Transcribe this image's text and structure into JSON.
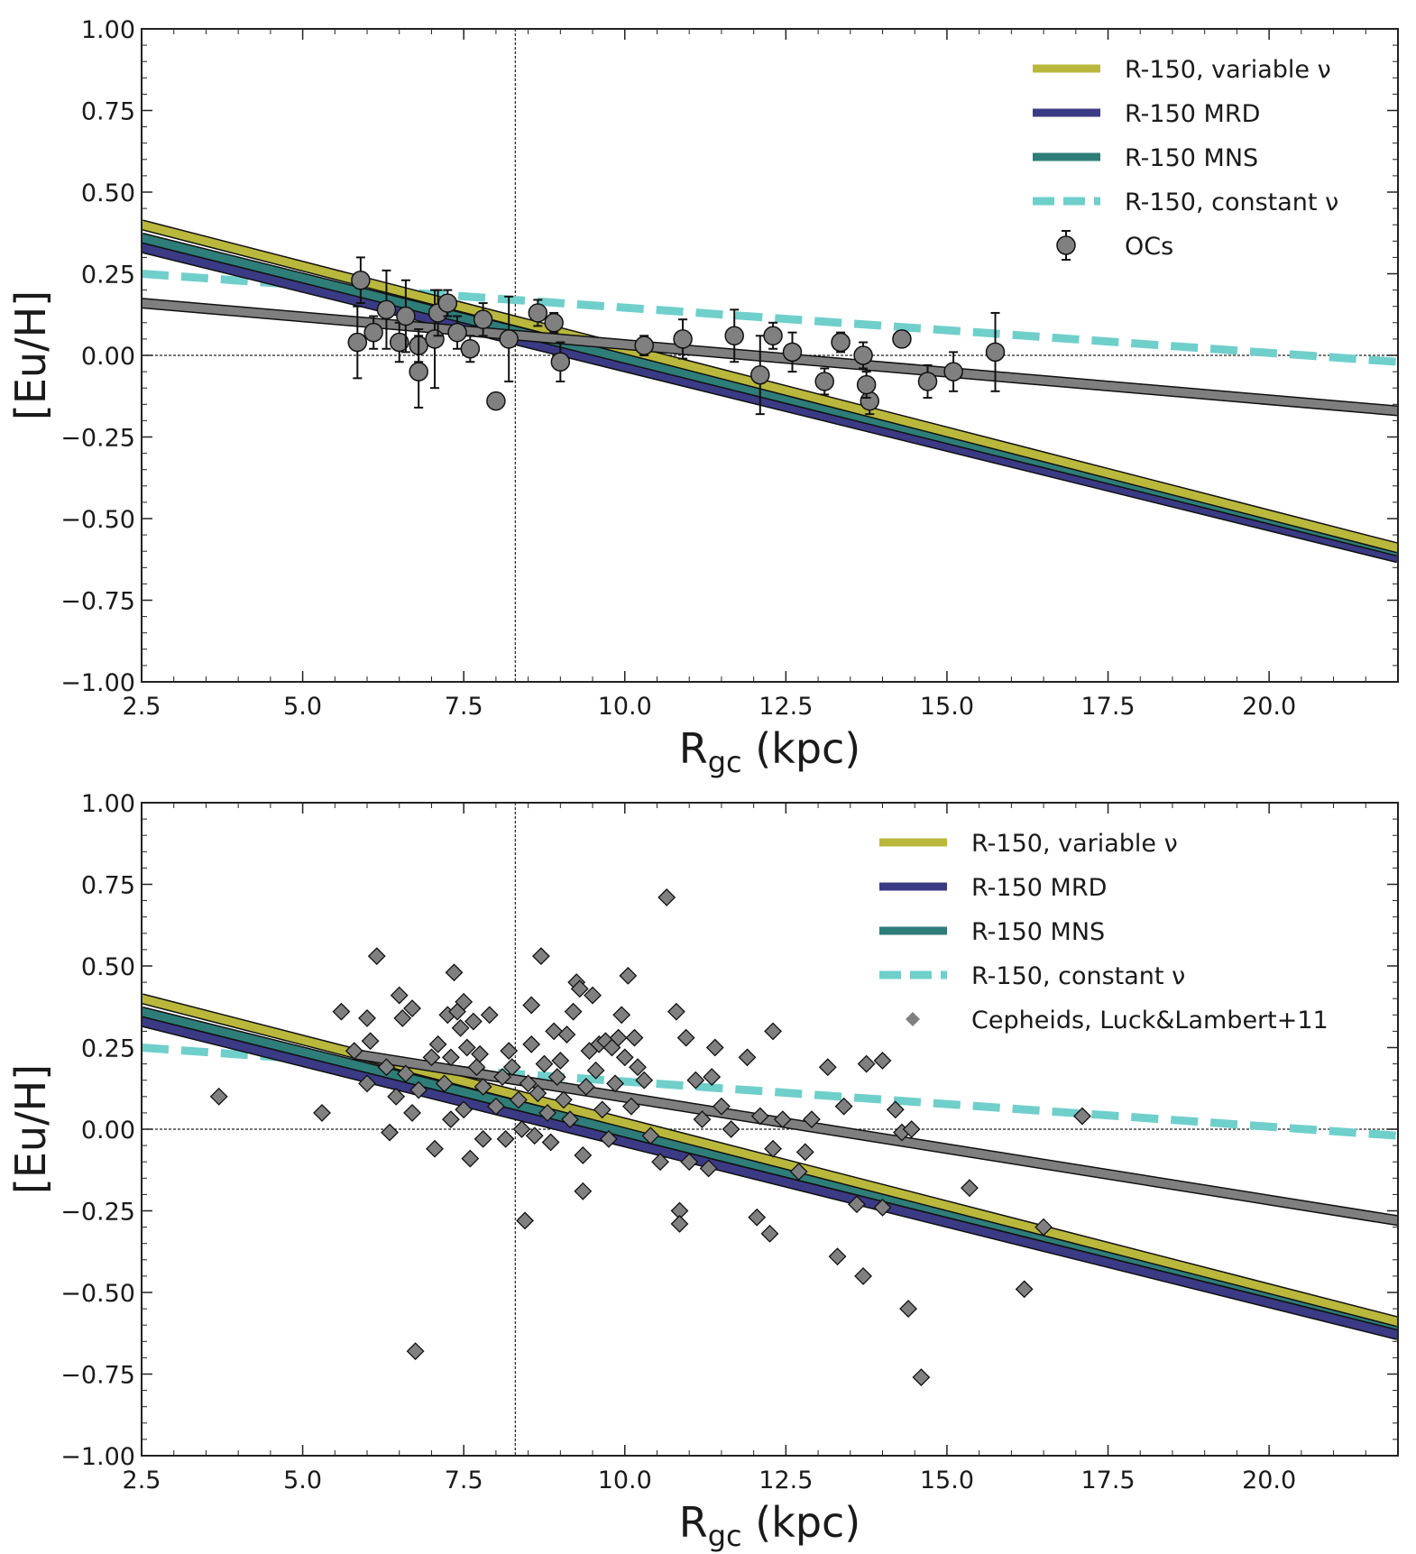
{
  "chart_data": [
    {
      "type": "scatter",
      "panel": "top",
      "xlabel_main": "R",
      "xlabel_sub": "gc",
      "xlabel_units": " (kpc)",
      "ylabel": "[Eu/H]",
      "xlim": [
        2.5,
        22.0
      ],
      "ylim": [
        -1.0,
        1.0
      ],
      "xticks": [
        2.5,
        5.0,
        7.5,
        10.0,
        12.5,
        15.0,
        17.5,
        20.0
      ],
      "xtick_labels": [
        "2.5",
        "5.0",
        "7.5",
        "10.0",
        "12.5",
        "15.0",
        "17.5",
        "20.0"
      ],
      "yticks": [
        1.0,
        0.75,
        0.5,
        0.25,
        0.0,
        -0.25,
        -0.5,
        -0.75,
        -1.0
      ],
      "ytick_labels": [
        "1.00",
        "0.75",
        "0.50",
        "0.25",
        "0.00",
        "−0.25",
        "−0.50",
        "−0.75",
        "−1.00"
      ],
      "ref_lines": {
        "x": 8.3,
        "y": 0.0
      },
      "legend_position": "top-right",
      "lines": [
        {
          "name": "R-150, variable ν",
          "color": "#b9b83d",
          "style": "solid",
          "x": [
            2.5,
            22.0
          ],
          "y": [
            0.4,
            -0.59
          ]
        },
        {
          "name": "R-150 MRD",
          "color": "#3b3a85",
          "style": "solid",
          "x": [
            2.5,
            22.0
          ],
          "y": [
            0.33,
            -0.62
          ]
        },
        {
          "name": "R-150 MNS",
          "color": "#2e7d79",
          "style": "solid",
          "x": [
            2.5,
            22.0
          ],
          "y": [
            0.36,
            -0.6
          ]
        },
        {
          "name": "R-150, constant ν",
          "color": "#6fcfcb",
          "style": "dashed",
          "x": [
            2.5,
            22.0
          ],
          "y": [
            0.25,
            -0.02
          ]
        }
      ],
      "fit_line": {
        "color": "#7f7f7f",
        "x": [
          2.5,
          22.0
        ],
        "y": [
          0.16,
          -0.17
        ]
      },
      "points_label": "OCs",
      "points_color": "#808080",
      "points_marker": "circle",
      "points": [
        {
          "x": 5.85,
          "y": 0.04,
          "err": 0.11
        },
        {
          "x": 5.9,
          "y": 0.23,
          "err": 0.07
        },
        {
          "x": 6.1,
          "y": 0.07,
          "err": 0.05
        },
        {
          "x": 6.3,
          "y": 0.14,
          "err": 0.12
        },
        {
          "x": 6.5,
          "y": 0.04,
          "err": 0.06
        },
        {
          "x": 6.6,
          "y": 0.12,
          "err": 0.11
        },
        {
          "x": 6.8,
          "y": 0.03,
          "err": 0.05
        },
        {
          "x": 6.8,
          "y": -0.05,
          "err": 0.11
        },
        {
          "x": 7.05,
          "y": 0.05,
          "err": 0.15
        },
        {
          "x": 7.1,
          "y": 0.13,
          "err": 0.07
        },
        {
          "x": 7.25,
          "y": 0.16,
          "err": 0.04
        },
        {
          "x": 7.4,
          "y": 0.07,
          "err": 0.05
        },
        {
          "x": 7.6,
          "y": 0.02,
          "err": 0.04
        },
        {
          "x": 7.8,
          "y": 0.11,
          "err": 0.05
        },
        {
          "x": 8.0,
          "y": -0.14,
          "err": 0.0
        },
        {
          "x": 8.2,
          "y": 0.05,
          "err": 0.13
        },
        {
          "x": 8.65,
          "y": 0.13,
          "err": 0.04
        },
        {
          "x": 8.9,
          "y": 0.1,
          "err": 0.03
        },
        {
          "x": 9.0,
          "y": -0.02,
          "err": 0.06
        },
        {
          "x": 10.3,
          "y": 0.03,
          "err": 0.03
        },
        {
          "x": 10.9,
          "y": 0.05,
          "err": 0.06
        },
        {
          "x": 11.7,
          "y": 0.06,
          "err": 0.08
        },
        {
          "x": 12.1,
          "y": -0.06,
          "err": 0.12
        },
        {
          "x": 12.3,
          "y": 0.06,
          "err": 0.04
        },
        {
          "x": 12.6,
          "y": 0.01,
          "err": 0.06
        },
        {
          "x": 13.1,
          "y": -0.08,
          "err": 0.04
        },
        {
          "x": 13.35,
          "y": 0.04,
          "err": 0.03
        },
        {
          "x": 13.7,
          "y": 0.0,
          "err": 0.04
        },
        {
          "x": 13.8,
          "y": -0.14,
          "err": 0.04
        },
        {
          "x": 13.75,
          "y": -0.09,
          "err": 0.04
        },
        {
          "x": 14.3,
          "y": 0.05,
          "err": 0.02
        },
        {
          "x": 14.7,
          "y": -0.08,
          "err": 0.05
        },
        {
          "x": 15.1,
          "y": -0.05,
          "err": 0.06
        },
        {
          "x": 15.75,
          "y": 0.01,
          "err": 0.12
        }
      ]
    },
    {
      "type": "scatter",
      "panel": "bottom",
      "xlabel_main": "R",
      "xlabel_sub": "gc",
      "xlabel_units": " (kpc)",
      "ylabel": "[Eu/H]",
      "xlim": [
        2.5,
        22.0
      ],
      "ylim": [
        -1.0,
        1.0
      ],
      "xticks": [
        2.5,
        5.0,
        7.5,
        10.0,
        12.5,
        15.0,
        17.5,
        20.0
      ],
      "xtick_labels": [
        "2.5",
        "5.0",
        "7.5",
        "10.0",
        "12.5",
        "15.0",
        "17.5",
        "20.0"
      ],
      "yticks": [
        1.0,
        0.75,
        0.5,
        0.25,
        0.0,
        -0.25,
        -0.5,
        -0.75,
        -1.0
      ],
      "ytick_labels": [
        "1.00",
        "0.75",
        "0.50",
        "0.25",
        "0.00",
        "−0.25",
        "−0.50",
        "−0.75",
        "−1.00"
      ],
      "ref_lines": {
        "x": 8.3,
        "y": 0.0
      },
      "legend_position": "top-right",
      "lines": [
        {
          "name": "R-150, variable ν",
          "color": "#b9b83d",
          "style": "solid",
          "x": [
            2.5,
            22.0
          ],
          "y": [
            0.4,
            -0.59
          ]
        },
        {
          "name": "R-150 MRD",
          "color": "#3b3a85",
          "style": "solid",
          "x": [
            2.5,
            22.0
          ],
          "y": [
            0.33,
            -0.63
          ]
        },
        {
          "name": "R-150 MNS",
          "color": "#2e7d79",
          "style": "solid",
          "x": [
            2.5,
            22.0
          ],
          "y": [
            0.36,
            -0.6
          ]
        },
        {
          "name": "R-150, constant ν",
          "color": "#6fcfcb",
          "style": "dashed",
          "x": [
            2.5,
            22.0
          ],
          "y": [
            0.25,
            -0.02
          ]
        }
      ],
      "fit_line": {
        "color": "#7f7f7f",
        "x": [
          5.8,
          22.0
        ],
        "y": [
          0.23,
          -0.28
        ]
      },
      "points_label": "Cepheids, Luck&Lambert+11",
      "points_color": "#808080",
      "points_marker": "diamond",
      "points": [
        {
          "x": 3.7,
          "y": 0.1
        },
        {
          "x": 5.3,
          "y": 0.05
        },
        {
          "x": 5.6,
          "y": 0.36
        },
        {
          "x": 5.8,
          "y": 0.24
        },
        {
          "x": 6.0,
          "y": 0.34
        },
        {
          "x": 6.05,
          "y": 0.27
        },
        {
          "x": 6.0,
          "y": 0.14
        },
        {
          "x": 6.15,
          "y": 0.53
        },
        {
          "x": 6.3,
          "y": 0.19
        },
        {
          "x": 6.35,
          "y": -0.01
        },
        {
          "x": 6.45,
          "y": 0.1
        },
        {
          "x": 6.5,
          "y": 0.41
        },
        {
          "x": 6.55,
          "y": 0.34
        },
        {
          "x": 6.6,
          "y": 0.17
        },
        {
          "x": 6.7,
          "y": 0.37
        },
        {
          "x": 6.7,
          "y": 0.05
        },
        {
          "x": 6.75,
          "y": -0.68
        },
        {
          "x": 6.8,
          "y": 0.12
        },
        {
          "x": 7.0,
          "y": 0.22
        },
        {
          "x": 7.05,
          "y": -0.06
        },
        {
          "x": 7.1,
          "y": 0.26
        },
        {
          "x": 7.2,
          "y": 0.14
        },
        {
          "x": 7.25,
          "y": 0.35
        },
        {
          "x": 7.3,
          "y": 0.22
        },
        {
          "x": 7.3,
          "y": 0.03
        },
        {
          "x": 7.35,
          "y": 0.48
        },
        {
          "x": 7.4,
          "y": 0.36
        },
        {
          "x": 7.45,
          "y": 0.31
        },
        {
          "x": 7.5,
          "y": 0.39
        },
        {
          "x": 7.5,
          "y": 0.06
        },
        {
          "x": 7.55,
          "y": 0.25
        },
        {
          "x": 7.6,
          "y": -0.09
        },
        {
          "x": 7.65,
          "y": 0.33
        },
        {
          "x": 7.7,
          "y": 0.19
        },
        {
          "x": 7.75,
          "y": 0.23
        },
        {
          "x": 7.8,
          "y": -0.03
        },
        {
          "x": 7.8,
          "y": 0.13
        },
        {
          "x": 7.9,
          "y": 0.35
        },
        {
          "x": 8.0,
          "y": 0.07
        },
        {
          "x": 8.1,
          "y": 0.16
        },
        {
          "x": 8.15,
          "y": -0.03
        },
        {
          "x": 8.2,
          "y": 0.24
        },
        {
          "x": 8.25,
          "y": 0.19
        },
        {
          "x": 8.35,
          "y": 0.09
        },
        {
          "x": 8.4,
          "y": 0.0
        },
        {
          "x": 8.45,
          "y": -0.28
        },
        {
          "x": 8.5,
          "y": 0.14
        },
        {
          "x": 8.55,
          "y": 0.38
        },
        {
          "x": 8.55,
          "y": 0.26
        },
        {
          "x": 8.6,
          "y": -0.02
        },
        {
          "x": 8.65,
          "y": 0.11
        },
        {
          "x": 8.7,
          "y": 0.53
        },
        {
          "x": 8.75,
          "y": 0.2
        },
        {
          "x": 8.8,
          "y": 0.05
        },
        {
          "x": 8.85,
          "y": -0.04
        },
        {
          "x": 8.9,
          "y": 0.3
        },
        {
          "x": 8.95,
          "y": 0.16
        },
        {
          "x": 9.0,
          "y": 0.21
        },
        {
          "x": 9.05,
          "y": 0.09
        },
        {
          "x": 9.1,
          "y": 0.29
        },
        {
          "x": 9.15,
          "y": 0.03
        },
        {
          "x": 9.2,
          "y": 0.36
        },
        {
          "x": 9.25,
          "y": 0.45
        },
        {
          "x": 9.3,
          "y": 0.43
        },
        {
          "x": 9.35,
          "y": -0.08
        },
        {
          "x": 9.35,
          "y": -0.19
        },
        {
          "x": 9.4,
          "y": 0.13
        },
        {
          "x": 9.45,
          "y": 0.24
        },
        {
          "x": 9.5,
          "y": 0.41
        },
        {
          "x": 9.55,
          "y": 0.18
        },
        {
          "x": 9.6,
          "y": 0.26
        },
        {
          "x": 9.65,
          "y": 0.06
        },
        {
          "x": 9.7,
          "y": 0.27
        },
        {
          "x": 9.75,
          "y": -0.03
        },
        {
          "x": 9.8,
          "y": 0.25
        },
        {
          "x": 9.85,
          "y": 0.14
        },
        {
          "x": 9.9,
          "y": 0.28
        },
        {
          "x": 9.95,
          "y": 0.35
        },
        {
          "x": 10.0,
          "y": 0.22
        },
        {
          "x": 10.05,
          "y": 0.47
        },
        {
          "x": 10.1,
          "y": 0.07
        },
        {
          "x": 10.15,
          "y": 0.28
        },
        {
          "x": 10.2,
          "y": 0.19
        },
        {
          "x": 10.3,
          "y": 0.15
        },
        {
          "x": 10.4,
          "y": -0.02
        },
        {
          "x": 10.55,
          "y": -0.1
        },
        {
          "x": 10.65,
          "y": 0.71
        },
        {
          "x": 10.8,
          "y": 0.36
        },
        {
          "x": 10.85,
          "y": -0.25
        },
        {
          "x": 10.85,
          "y": -0.29
        },
        {
          "x": 10.95,
          "y": 0.28
        },
        {
          "x": 11.0,
          "y": -0.1
        },
        {
          "x": 11.1,
          "y": 0.15
        },
        {
          "x": 11.2,
          "y": 0.03
        },
        {
          "x": 11.3,
          "y": -0.12
        },
        {
          "x": 11.35,
          "y": 0.16
        },
        {
          "x": 11.4,
          "y": 0.25
        },
        {
          "x": 11.5,
          "y": 0.07
        },
        {
          "x": 11.65,
          "y": 0.0
        },
        {
          "x": 11.9,
          "y": 0.22
        },
        {
          "x": 12.05,
          "y": -0.27
        },
        {
          "x": 12.1,
          "y": 0.04
        },
        {
          "x": 12.25,
          "y": -0.32
        },
        {
          "x": 12.3,
          "y": 0.3
        },
        {
          "x": 12.3,
          "y": -0.06
        },
        {
          "x": 12.45,
          "y": 0.03
        },
        {
          "x": 12.7,
          "y": -0.13
        },
        {
          "x": 12.8,
          "y": -0.07
        },
        {
          "x": 12.9,
          "y": 0.03
        },
        {
          "x": 13.15,
          "y": 0.19
        },
        {
          "x": 13.3,
          "y": -0.39
        },
        {
          "x": 13.4,
          "y": 0.07
        },
        {
          "x": 13.6,
          "y": -0.23
        },
        {
          "x": 13.7,
          "y": -0.45
        },
        {
          "x": 13.75,
          "y": 0.2
        },
        {
          "x": 14.0,
          "y": 0.21
        },
        {
          "x": 14.0,
          "y": -0.24
        },
        {
          "x": 14.2,
          "y": 0.06
        },
        {
          "x": 14.3,
          "y": -0.01
        },
        {
          "x": 14.4,
          "y": -0.55
        },
        {
          "x": 14.45,
          "y": 0.0
        },
        {
          "x": 14.6,
          "y": -0.76
        },
        {
          "x": 15.35,
          "y": -0.18
        },
        {
          "x": 16.2,
          "y": -0.49
        },
        {
          "x": 16.5,
          "y": -0.3
        },
        {
          "x": 17.1,
          "y": 0.04
        }
      ]
    }
  ]
}
